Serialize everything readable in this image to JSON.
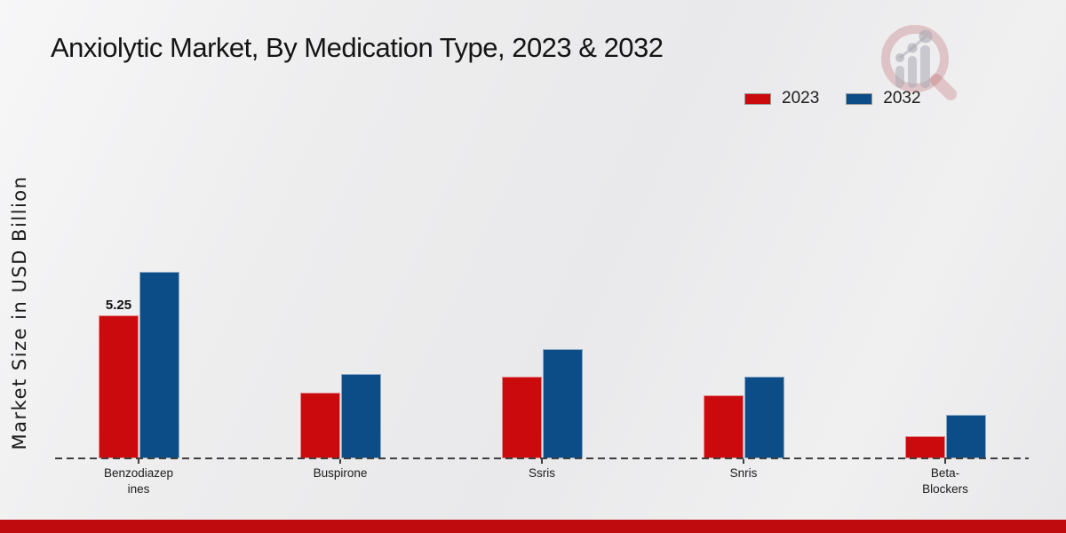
{
  "title": "Anxiolytic Market, By Medication Type, 2023 & 2032",
  "ylabel": "Market Size in USD Billion",
  "legend": [
    {
      "label": "2023",
      "color": "#cb0a0d"
    },
    {
      "label": "2032",
      "color": "#0d4d87"
    }
  ],
  "colors": {
    "series_2023": "#cb0a0d",
    "series_2032": "#0d4d87",
    "footer_bar": "#c00b0e",
    "axis_line": "#3f3f3f",
    "background": "#ececee"
  },
  "logo_icon": "magnifier-growth-chart-watermark",
  "chart_data": {
    "type": "bar",
    "title": "Anxiolytic Market, By Medication Type, 2023 & 2032",
    "xlabel": "",
    "ylabel": "Market Size in USD Billion",
    "categories": [
      "Benzodiazepines",
      "Buspirone",
      "Ssris",
      "Snris",
      "Beta-Blockers"
    ],
    "category_display": [
      "Benzodiazep\nines",
      "Buspirone",
      "Ssris",
      "Snris",
      "Beta-\nBlockers"
    ],
    "series": [
      {
        "name": "2023",
        "color": "#cb0a0d",
        "values": [
          5.25,
          2.4,
          3.0,
          2.3,
          0.8
        ],
        "labels": [
          "5.25",
          "",
          "",
          "",
          ""
        ]
      },
      {
        "name": "2032",
        "color": "#0d4d87",
        "values": [
          6.85,
          3.1,
          4.0,
          3.0,
          1.6
        ],
        "labels": [
          "",
          "",
          "",
          "",
          ""
        ]
      }
    ],
    "ylim": [
      0,
      7
    ],
    "y_axis_ticks_visible": false,
    "grid": false,
    "baseline_style": "dashed",
    "legend_position": "top-right"
  }
}
